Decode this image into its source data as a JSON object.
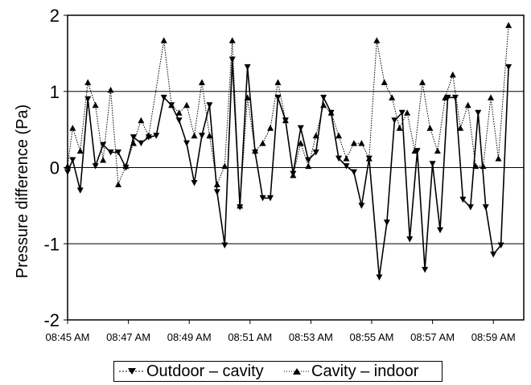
{
  "chart_data": {
    "type": "line",
    "title": "",
    "xlabel": "",
    "ylabel": "Pressure difference (Pa)",
    "ylim": [
      -2,
      2
    ],
    "yticks": [
      "-2",
      "-1",
      "0",
      "1",
      "2"
    ],
    "xlim": [
      "08:45 AM",
      "09:00 AM"
    ],
    "xticks": [
      "08:45 AM",
      "08:47 AM",
      "08:49 AM",
      "08:51 AM",
      "08:53 AM",
      "08:55 AM",
      "08:57 AM",
      "08:59 AM"
    ],
    "reference_lines": [
      1,
      0,
      -1
    ],
    "legend_position": "bottom",
    "series": [
      {
        "name": "Outdoor – cavity",
        "marker": "triangle-down",
        "line": "solid",
        "color": "#000000",
        "points": [
          [
            "08:45:00",
            -0.06
          ],
          [
            "08:45:10",
            0.1
          ],
          [
            "08:45:25",
            -0.3
          ],
          [
            "08:45:40",
            0.9
          ],
          [
            "08:45:55",
            0.02
          ],
          [
            "08:46:10",
            0.3
          ],
          [
            "08:46:25",
            0.2
          ],
          [
            "08:46:40",
            0.2
          ],
          [
            "08:46:55",
            0.0
          ],
          [
            "08:47:10",
            0.4
          ],
          [
            "08:47:25",
            0.32
          ],
          [
            "08:47:40",
            0.4
          ],
          [
            "08:47:55",
            0.42
          ],
          [
            "08:48:10",
            0.92
          ],
          [
            "08:48:25",
            0.82
          ],
          [
            "08:48:40",
            0.62
          ],
          [
            "08:48:55",
            0.32
          ],
          [
            "08:49:10",
            -0.2
          ],
          [
            "08:49:25",
            0.42
          ],
          [
            "08:49:40",
            0.82
          ],
          [
            "08:49:55",
            -0.32
          ],
          [
            "08:50:10",
            -1.02
          ],
          [
            "08:50:25",
            1.42
          ],
          [
            "08:50:40",
            -0.52
          ],
          [
            "08:50:55",
            1.32
          ],
          [
            "08:51:10",
            0.2
          ],
          [
            "08:51:25",
            -0.4
          ],
          [
            "08:51:40",
            -0.4
          ],
          [
            "08:51:55",
            0.92
          ],
          [
            "08:52:10",
            0.62
          ],
          [
            "08:52:25",
            -0.08
          ],
          [
            "08:52:40",
            0.52
          ],
          [
            "08:52:55",
            0.1
          ],
          [
            "08:53:10",
            0.2
          ],
          [
            "08:53:25",
            0.92
          ],
          [
            "08:53:40",
            0.72
          ],
          [
            "08:53:55",
            0.12
          ],
          [
            "08:54:10",
            0.02
          ],
          [
            "08:54:25",
            -0.06
          ],
          [
            "08:54:40",
            -0.5
          ],
          [
            "08:54:55",
            0.12
          ],
          [
            "08:55:15",
            -1.44
          ],
          [
            "08:55:30",
            -0.72
          ],
          [
            "08:55:45",
            0.62
          ],
          [
            "08:56:00",
            0.72
          ],
          [
            "08:56:15",
            -0.94
          ],
          [
            "08:56:30",
            0.22
          ],
          [
            "08:56:45",
            -1.34
          ],
          [
            "08:57:00",
            0.05
          ],
          [
            "08:57:15",
            -0.82
          ],
          [
            "08:57:30",
            0.92
          ],
          [
            "08:57:45",
            0.92
          ],
          [
            "08:58:00",
            -0.42
          ],
          [
            "08:58:15",
            -0.52
          ],
          [
            "08:58:30",
            0.72
          ],
          [
            "08:58:45",
            -0.52
          ],
          [
            "08:59:00",
            -1.14
          ],
          [
            "08:59:15",
            -1.02
          ],
          [
            "08:59:30",
            1.32
          ]
        ]
      },
      {
        "name": "Cavity – indoor",
        "marker": "triangle-up",
        "line": "dotted",
        "color": "#000000",
        "points": [
          [
            "08:45:00",
            0.02
          ],
          [
            "08:45:10",
            0.52
          ],
          [
            "08:45:25",
            0.22
          ],
          [
            "08:45:40",
            1.12
          ],
          [
            "08:45:55",
            0.82
          ],
          [
            "08:46:10",
            0.1
          ],
          [
            "08:46:25",
            1.02
          ],
          [
            "08:46:40",
            -0.22
          ],
          [
            "08:46:55",
            0.02
          ],
          [
            "08:47:10",
            0.32
          ],
          [
            "08:47:25",
            0.62
          ],
          [
            "08:47:40",
            0.42
          ],
          [
            "08:48:10",
            1.67
          ],
          [
            "08:48:25",
            0.82
          ],
          [
            "08:48:40",
            0.72
          ],
          [
            "08:48:55",
            0.82
          ],
          [
            "08:49:10",
            0.42
          ],
          [
            "08:49:25",
            1.12
          ],
          [
            "08:49:40",
            0.42
          ],
          [
            "08:49:55",
            -0.22
          ],
          [
            "08:50:10",
            0.02
          ],
          [
            "08:50:25",
            1.67
          ],
          [
            "08:50:40",
            -0.5
          ],
          [
            "08:50:55",
            0.92
          ],
          [
            "08:51:10",
            0.22
          ],
          [
            "08:51:25",
            0.32
          ],
          [
            "08:51:40",
            0.52
          ],
          [
            "08:51:55",
            1.12
          ],
          [
            "08:52:10",
            0.62
          ],
          [
            "08:52:25",
            -0.1
          ],
          [
            "08:52:40",
            0.32
          ],
          [
            "08:52:55",
            0.02
          ],
          [
            "08:53:10",
            0.42
          ],
          [
            "08:53:25",
            0.82
          ],
          [
            "08:53:40",
            0.72
          ],
          [
            "08:53:55",
            0.42
          ],
          [
            "08:54:10",
            0.12
          ],
          [
            "08:54:25",
            0.32
          ],
          [
            "08:54:40",
            0.32
          ],
          [
            "08:54:55",
            0.12
          ],
          [
            "08:55:10",
            1.67
          ],
          [
            "08:55:25",
            1.12
          ],
          [
            "08:55:40",
            0.92
          ],
          [
            "08:55:55",
            0.52
          ],
          [
            "08:56:10",
            0.72
          ],
          [
            "08:56:25",
            0.22
          ],
          [
            "08:56:40",
            1.12
          ],
          [
            "08:56:55",
            0.52
          ],
          [
            "08:57:10",
            0.22
          ],
          [
            "08:57:25",
            0.92
          ],
          [
            "08:57:40",
            1.22
          ],
          [
            "08:57:55",
            0.52
          ],
          [
            "08:58:10",
            0.82
          ],
          [
            "08:58:25",
            0.02
          ],
          [
            "08:58:40",
            0.02
          ],
          [
            "08:58:55",
            0.92
          ],
          [
            "08:59:10",
            0.12
          ],
          [
            "08:59:30",
            1.87
          ]
        ]
      }
    ]
  },
  "legend": {
    "outdoor_label": "Outdoor – cavity",
    "cavity_label": "Cavity – indoor"
  }
}
